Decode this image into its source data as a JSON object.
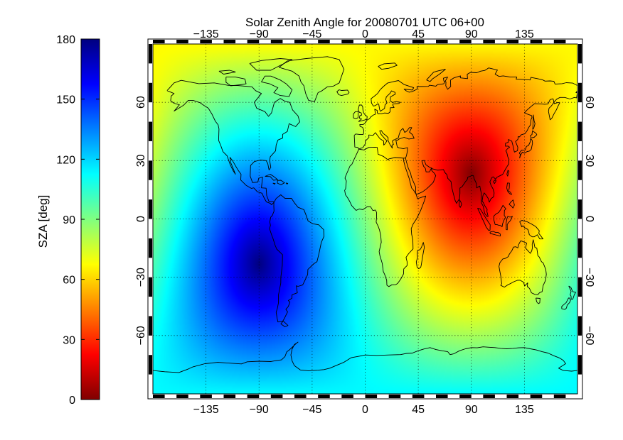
{
  "chart_data": {
    "type": "heatmap",
    "title": "Solar Zenith Angle for 20080701 UTC  06+00",
    "projection": "equirectangular world map with coastlines",
    "subsolar_point": {
      "lon": 90,
      "lat": 23.1
    },
    "value_min_location": {
      "lon": 90,
      "lat": 23,
      "value": 0
    },
    "value_max_location": {
      "lon": -90,
      "lat": -23,
      "value": 180
    },
    "xlim": [
      -180,
      180
    ],
    "ylim": [
      -90,
      90
    ],
    "x_ticks_top": [
      "−135",
      "−90",
      "−45",
      "0",
      "45",
      "90",
      "135"
    ],
    "x_ticks_bottom": [
      "−135",
      "−90",
      "−45",
      "0",
      "45",
      "90",
      "135"
    ],
    "x_tick_values": [
      -135,
      -90,
      -45,
      0,
      45,
      90,
      135
    ],
    "y_ticks_left": [
      "60",
      "30",
      "0",
      "−30",
      "−60"
    ],
    "y_ticks_right": [
      "60",
      "30",
      "0",
      "−30",
      "−60"
    ],
    "y_tick_values": [
      60,
      30,
      0,
      -30,
      -60
    ],
    "grid": true,
    "grid_style": "dotted",
    "colorbar": {
      "label": "SZA [deg]",
      "range": [
        0,
        180
      ],
      "ticks": [
        "180",
        "150",
        "120",
        "90",
        "60",
        "30",
        "0"
      ],
      "tick_values": [
        180,
        150,
        120,
        90,
        60,
        30,
        0
      ],
      "colormap": "jet",
      "colors": [
        "#800000",
        "#ff0000",
        "#ff8000",
        "#ffff00",
        "#80ff80",
        "#00ffff",
        "#0080ff",
        "#0000ff",
        "#000080"
      ]
    },
    "coastline_color": "#000000"
  }
}
